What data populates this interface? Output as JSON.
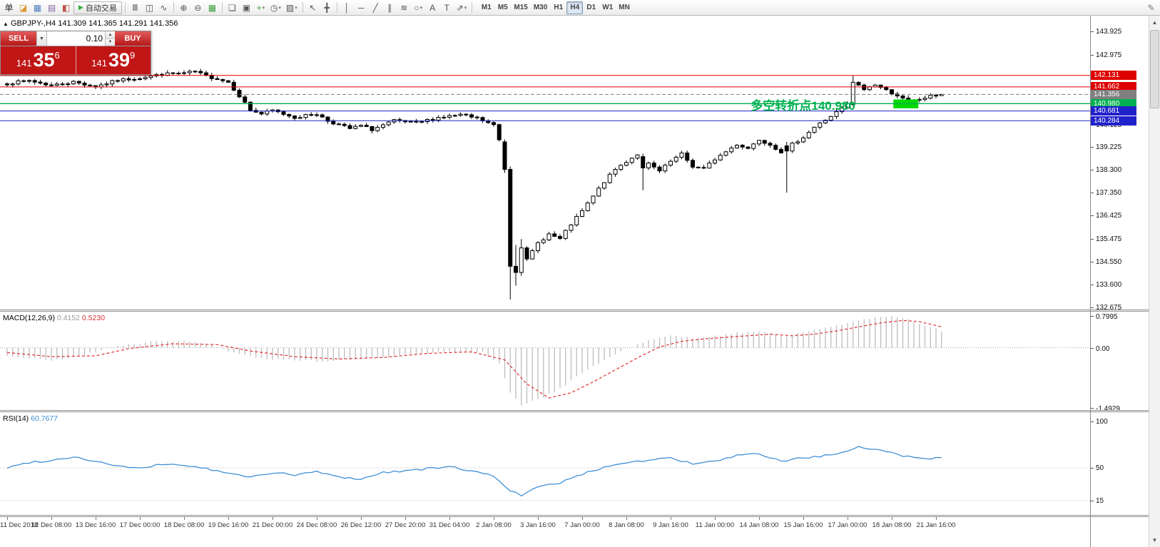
{
  "toolbar": {
    "items": [
      {
        "name": "order-ticket-icon",
        "glyph": "单",
        "color": "#333333"
      },
      {
        "name": "new-order-icon",
        "glyph": "◪",
        "color": "#d9952f"
      },
      {
        "name": "chart-window-icon",
        "glyph": "▦",
        "color": "#4f81bd"
      },
      {
        "name": "profiles-icon",
        "glyph": "▤",
        "color": "#8064a2"
      },
      {
        "name": "market-watch-icon",
        "glyph": "◧",
        "color": "#c0504d"
      },
      {
        "name": "autotrading-button",
        "type": "button",
        "glyph": "▶",
        "glyph_color": "#2fae3f",
        "label": "自动交易"
      },
      {
        "sep": true
      },
      {
        "name": "bar-chart-icon",
        "glyph": "Ⅲ"
      },
      {
        "name": "candlestick-chart-icon",
        "glyph": "◫"
      },
      {
        "name": "line-chart-icon",
        "glyph": "∿"
      },
      {
        "sep": true
      },
      {
        "name": "zoom-in-icon",
        "glyph": "⊕"
      },
      {
        "name": "zoom-out-icon",
        "glyph": "⊖"
      },
      {
        "name": "grid-icon",
        "glyph": "▦",
        "color": "#3c9e3c"
      },
      {
        "sep": true
      },
      {
        "name": "tile-windows-icon",
        "glyph": "❏"
      },
      {
        "name": "cascade-windows-icon",
        "glyph": "▣"
      },
      {
        "name": "indicators-icon",
        "glyph": "+",
        "color": "#3c9e3c",
        "dropdown": true
      },
      {
        "name": "periods-icon",
        "glyph": "◷",
        "dropdown": true
      },
      {
        "name": "templates-icon",
        "glyph": "▨",
        "dropdown": true
      },
      {
        "sep": true
      },
      {
        "name": "cursor-icon",
        "glyph": "↖"
      },
      {
        "name": "crosshair-icon",
        "glyph": "╋"
      },
      {
        "sep": true
      },
      {
        "name": "vertical-line-icon",
        "glyph": "│"
      },
      {
        "name": "horizontal-line-icon",
        "glyph": "─"
      },
      {
        "name": "trendline-icon",
        "glyph": "╱"
      },
      {
        "name": "channel-icon",
        "glyph": "∥"
      },
      {
        "name": "fibonacci-icon",
        "glyph": "≋"
      },
      {
        "name": "shapes-icon",
        "glyph": "○",
        "dropdown": true
      },
      {
        "name": "text-icon",
        "glyph": "A"
      },
      {
        "name": "text-label-icon",
        "glyph": "T"
      },
      {
        "name": "arrows-icon",
        "glyph": "⇗",
        "dropdown": true
      },
      {
        "sep": true
      }
    ],
    "timeframes": [
      {
        "label": "M1"
      },
      {
        "label": "M5"
      },
      {
        "label": "M15"
      },
      {
        "label": "M30"
      },
      {
        "label": "H1"
      },
      {
        "label": "H4",
        "active": true
      },
      {
        "label": "D1"
      },
      {
        "label": "W1"
      },
      {
        "label": "MN"
      }
    ],
    "right_items": [
      {
        "name": "pencil-icon",
        "glyph": "✎",
        "color": "#777777"
      }
    ]
  },
  "chart": {
    "title": "GBPJPY-,H4",
    "ohlc": "141.309 141.365 141.291 141.356"
  },
  "one_click": {
    "sell_label": "SELL",
    "buy_label": "BUY",
    "volume": "0.10",
    "sell_price": {
      "prefix": "141",
      "big": "35",
      "sup": "6"
    },
    "buy_price": {
      "prefix": "141",
      "big": "39",
      "sup": "9"
    }
  },
  "annotation": {
    "text": "多空转折点140.980",
    "color": "#00b050",
    "idx": 134.5,
    "price": 141.03
  },
  "macd": {
    "title": "MACD(12,26,9)",
    "value_main": "0.4152",
    "value_signal": "0.5230",
    "axis": [
      "0.7995",
      "0.00",
      "-1.4929"
    ],
    "axis_values": [
      0.7995,
      0,
      -1.4929
    ]
  },
  "rsi": {
    "title": "RSI(14)",
    "value": "60.7677",
    "axis": [
      "100",
      "50",
      "15"
    ],
    "axis_values": [
      100,
      50,
      15
    ]
  },
  "price_axis": {
    "ticks": [
      143.925,
      142.975,
      142.025,
      141.075,
      140.125,
      139.225,
      138.3,
      137.35,
      136.425,
      135.475,
      134.55,
      133.6,
      132.675
    ]
  },
  "levels": [
    {
      "price": 142.131,
      "color": "#dd0000",
      "type": "solid"
    },
    {
      "price": 141.662,
      "color": "#dd0000",
      "type": "solid"
    },
    {
      "price": 141.356,
      "color": "#808080",
      "type": "dashed",
      "current": true
    },
    {
      "price": 140.98,
      "color": "#00b050",
      "type": "solid"
    },
    {
      "price": 140.681,
      "color": "#2222cc",
      "type": "solid"
    },
    {
      "price": 140.284,
      "color": "#2222cc",
      "type": "solid"
    }
  ],
  "highlight_rect": {
    "idx1": 160.3,
    "idx2": 164.8,
    "price1": 141.15,
    "price2": 140.79,
    "color": "#00d800"
  },
  "chart_data": {
    "type": "candlestick",
    "symbol": "GBPJPY",
    "period": "H4",
    "current_ohlc": {
      "open": 141.309,
      "high": 141.365,
      "low": 141.291,
      "close": 141.356
    },
    "bid": 141.356,
    "ask": 141.399,
    "ylim_main": [
      132.675,
      143.925
    ],
    "ylim_macd": [
      -1.4929,
      0.7995
    ],
    "ylim_rsi": [
      0,
      100
    ],
    "candles_n": 170,
    "x_labels": [
      "11 Dec 2018",
      "12 Dec 08:00",
      "13 Dec 16:00",
      "17 Dec 00:00",
      "18 Dec 08:00",
      "19 Dec 16:00",
      "21 Dec 00:00",
      "24 Dec 08:00",
      "26 Dec 12:00",
      "27 Dec 20:00",
      "31 Dec 04:00",
      "2 Jan 08:00",
      "3 Jan 16:00",
      "7 Jan 00:00",
      "8 Jan 08:00",
      "9 Jan 16:00",
      "11 Jan 00:00",
      "14 Jan 08:00",
      "15 Jan 16:00",
      "17 Jan 00:00",
      "18 Jan 08:00",
      "21 Jan 16:00"
    ],
    "close_anchors": [
      [
        0,
        141.8
      ],
      [
        4,
        141.92
      ],
      [
        8,
        141.72
      ],
      [
        12,
        141.86
      ],
      [
        16,
        141.68
      ],
      [
        20,
        141.93
      ],
      [
        24,
        142.03
      ],
      [
        28,
        142.18
      ],
      [
        32,
        142.22
      ],
      [
        34,
        142.28
      ],
      [
        36,
        142.1
      ],
      [
        38,
        142.0
      ],
      [
        40,
        141.86
      ],
      [
        42,
        141.3
      ],
      [
        44,
        140.72
      ],
      [
        46,
        140.56
      ],
      [
        48,
        140.7
      ],
      [
        52,
        140.42
      ],
      [
        56,
        140.56
      ],
      [
        58,
        140.28
      ],
      [
        62,
        139.96
      ],
      [
        64,
        140.08
      ],
      [
        66,
        139.92
      ],
      [
        70,
        140.28
      ],
      [
        74,
        140.18
      ],
      [
        78,
        140.42
      ],
      [
        82,
        140.52
      ],
      [
        85,
        140.38
      ],
      [
        88,
        140.1
      ],
      [
        89,
        139.5
      ],
      [
        90,
        138.3
      ],
      [
        91,
        134.35
      ],
      [
        92,
        134.1
      ],
      [
        93,
        135.1
      ],
      [
        94,
        134.6
      ],
      [
        96,
        135.3
      ],
      [
        98,
        135.66
      ],
      [
        100,
        135.46
      ],
      [
        102,
        136.06
      ],
      [
        104,
        136.6
      ],
      [
        106,
        137.2
      ],
      [
        108,
        137.8
      ],
      [
        110,
        138.3
      ],
      [
        112,
        138.62
      ],
      [
        114,
        138.92
      ],
      [
        116,
        138.52
      ],
      [
        118,
        138.22
      ],
      [
        120,
        138.62
      ],
      [
        122,
        138.92
      ],
      [
        124,
        138.42
      ],
      [
        126,
        138.32
      ],
      [
        128,
        138.72
      ],
      [
        130,
        139.02
      ],
      [
        132,
        139.32
      ],
      [
        134,
        139.16
      ],
      [
        136,
        139.52
      ],
      [
        138,
        139.32
      ],
      [
        140,
        139.02
      ],
      [
        141,
        139.05
      ],
      [
        142,
        139.32
      ],
      [
        144,
        139.62
      ],
      [
        146,
        140.02
      ],
      [
        148,
        140.32
      ],
      [
        150,
        140.62
      ],
      [
        152,
        140.95
      ],
      [
        153,
        141.85
      ],
      [
        155,
        141.56
      ],
      [
        157,
        141.76
      ],
      [
        159,
        141.52
      ],
      [
        161,
        141.32
      ],
      [
        163,
        141.02
      ],
      [
        165,
        141.16
      ],
      [
        167,
        141.28
      ],
      [
        169,
        141.356
      ]
    ],
    "candle_overrides": {
      "90": [
        139.42,
        139.52,
        138.16,
        138.3
      ],
      "91": [
        138.3,
        138.42,
        133.0,
        134.35
      ],
      "92": [
        134.35,
        135.22,
        133.56,
        134.1
      ],
      "93": [
        134.1,
        135.46,
        133.96,
        135.1
      ],
      "115": [
        138.82,
        138.94,
        137.45,
        138.36
      ],
      "141": [
        139.26,
        139.42,
        137.35,
        139.05
      ],
      "153": [
        140.95,
        142.12,
        140.88,
        141.85
      ],
      "169": [
        141.309,
        141.365,
        141.291,
        141.356
      ]
    },
    "macd_hist_anchors": [
      [
        0,
        -0.2
      ],
      [
        8,
        -0.32
      ],
      [
        14,
        -0.18
      ],
      [
        20,
        0.05
      ],
      [
        26,
        0.14
      ],
      [
        32,
        0.18
      ],
      [
        36,
        0.1
      ],
      [
        42,
        -0.18
      ],
      [
        48,
        -0.28
      ],
      [
        56,
        -0.33
      ],
      [
        64,
        -0.28
      ],
      [
        72,
        -0.18
      ],
      [
        80,
        -0.08
      ],
      [
        86,
        -0.12
      ],
      [
        89,
        -0.4
      ],
      [
        91,
        -1.1
      ],
      [
        93,
        -1.45
      ],
      [
        96,
        -1.28
      ],
      [
        100,
        -1.02
      ],
      [
        104,
        -0.62
      ],
      [
        108,
        -0.3
      ],
      [
        112,
        -0.02
      ],
      [
        116,
        0.18
      ],
      [
        120,
        0.3
      ],
      [
        124,
        0.24
      ],
      [
        128,
        0.3
      ],
      [
        132,
        0.36
      ],
      [
        136,
        0.42
      ],
      [
        140,
        0.3
      ],
      [
        144,
        0.36
      ],
      [
        148,
        0.5
      ],
      [
        152,
        0.62
      ],
      [
        156,
        0.74
      ],
      [
        160,
        0.78
      ],
      [
        163,
        0.7
      ],
      [
        166,
        0.55
      ],
      [
        169,
        0.415
      ]
    ],
    "macd_signal_anchors": [
      [
        0,
        -0.12
      ],
      [
        8,
        -0.22
      ],
      [
        16,
        -0.2
      ],
      [
        22,
        -0.02
      ],
      [
        30,
        0.1
      ],
      [
        38,
        0.08
      ],
      [
        44,
        -0.08
      ],
      [
        52,
        -0.22
      ],
      [
        60,
        -0.28
      ],
      [
        68,
        -0.24
      ],
      [
        76,
        -0.14
      ],
      [
        84,
        -0.1
      ],
      [
        90,
        -0.3
      ],
      [
        94,
        -0.9
      ],
      [
        98,
        -1.25
      ],
      [
        102,
        -1.12
      ],
      [
        106,
        -0.85
      ],
      [
        110,
        -0.55
      ],
      [
        114,
        -0.25
      ],
      [
        118,
        0.02
      ],
      [
        122,
        0.16
      ],
      [
        126,
        0.22
      ],
      [
        130,
        0.26
      ],
      [
        134,
        0.3
      ],
      [
        138,
        0.34
      ],
      [
        142,
        0.3
      ],
      [
        146,
        0.34
      ],
      [
        150,
        0.42
      ],
      [
        154,
        0.52
      ],
      [
        158,
        0.62
      ],
      [
        162,
        0.68
      ],
      [
        165,
        0.65
      ],
      [
        169,
        0.523
      ]
    ],
    "rsi_anchors": [
      [
        0,
        50
      ],
      [
        4,
        56
      ],
      [
        8,
        58
      ],
      [
        12,
        62
      ],
      [
        16,
        57
      ],
      [
        20,
        52
      ],
      [
        24,
        49
      ],
      [
        28,
        54
      ],
      [
        32,
        53
      ],
      [
        36,
        49
      ],
      [
        40,
        44
      ],
      [
        44,
        40
      ],
      [
        48,
        45
      ],
      [
        52,
        42
      ],
      [
        56,
        46
      ],
      [
        60,
        40
      ],
      [
        64,
        38
      ],
      [
        68,
        45
      ],
      [
        72,
        47
      ],
      [
        76,
        49
      ],
      [
        80,
        51
      ],
      [
        84,
        47
      ],
      [
        88,
        41
      ],
      [
        91,
        26
      ],
      [
        93,
        20
      ],
      [
        96,
        29
      ],
      [
        100,
        34
      ],
      [
        104,
        43
      ],
      [
        108,
        51
      ],
      [
        112,
        56
      ],
      [
        116,
        58
      ],
      [
        120,
        61
      ],
      [
        124,
        54
      ],
      [
        128,
        57
      ],
      [
        132,
        63
      ],
      [
        136,
        65
      ],
      [
        140,
        57
      ],
      [
        144,
        61
      ],
      [
        148,
        63
      ],
      [
        152,
        67
      ],
      [
        154,
        72
      ],
      [
        158,
        70
      ],
      [
        162,
        63
      ],
      [
        166,
        60
      ],
      [
        169,
        60.8
      ]
    ]
  }
}
